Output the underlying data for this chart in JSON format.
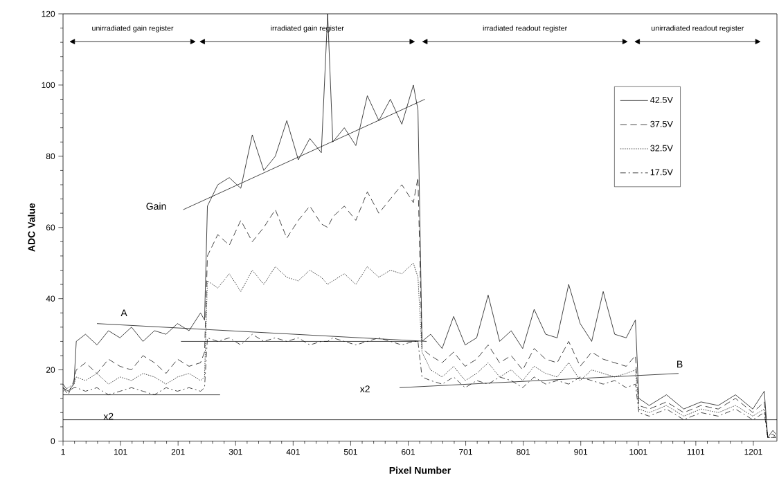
{
  "chart_data": {
    "type": "line",
    "xlabel": "Pixel Number",
    "ylabel": "ADC Value",
    "xlim": [
      1,
      1242
    ],
    "ylim": [
      0,
      120
    ],
    "xticks": [
      1,
      101,
      201,
      301,
      401,
      501,
      601,
      701,
      801,
      901,
      1001,
      1101,
      1201
    ],
    "yticks": [
      0,
      20,
      40,
      60,
      80,
      100,
      120
    ],
    "grid": false,
    "legend": "top right",
    "marker": "none",
    "x": [
      1,
      10,
      20,
      24,
      40,
      60,
      80,
      100,
      120,
      140,
      160,
      180,
      200,
      220,
      240,
      247,
      252,
      270,
      290,
      310,
      330,
      350,
      370,
      390,
      410,
      430,
      450,
      461,
      470,
      490,
      510,
      530,
      550,
      570,
      590,
      610,
      618,
      625,
      640,
      660,
      680,
      700,
      720,
      740,
      760,
      780,
      800,
      820,
      840,
      860,
      880,
      900,
      920,
      940,
      960,
      980,
      996,
      1002,
      1020,
      1050,
      1080,
      1110,
      1140,
      1170,
      1200,
      1220,
      1226,
      1235,
      1240
    ],
    "series": [
      {
        "name": "42.5V",
        "color": "#000000",
        "line_style": "solid",
        "values": [
          15,
          14,
          16,
          28,
          30,
          27,
          31,
          29,
          32,
          28,
          31,
          30,
          33,
          31,
          36,
          34,
          66,
          72,
          74,
          71,
          86,
          76,
          80,
          90,
          79,
          85,
          81,
          120,
          84,
          88,
          83,
          97,
          90,
          96,
          89,
          100,
          93,
          28,
          30,
          26,
          35,
          27,
          29,
          41,
          28,
          31,
          26,
          37,
          30,
          29,
          44,
          33,
          28,
          42,
          30,
          29,
          34,
          12,
          10,
          13,
          9,
          11,
          10,
          13,
          9,
          14,
          1,
          3,
          2
        ]
      },
      {
        "name": "37.5V",
        "color": "#000000",
        "line_style": "dashed",
        "values": [
          15,
          13,
          17,
          20,
          22,
          19,
          23,
          21,
          20,
          24,
          22,
          19,
          23,
          21,
          22,
          25,
          52,
          58,
          55,
          62,
          56,
          60,
          65,
          57,
          62,
          66,
          61,
          60,
          63,
          66,
          62,
          70,
          64,
          68,
          72,
          67,
          74,
          26,
          24,
          22,
          25,
          21,
          23,
          27,
          22,
          24,
          20,
          26,
          23,
          22,
          28,
          21,
          25,
          23,
          22,
          21,
          24,
          10,
          9,
          11,
          8,
          10,
          9,
          12,
          8,
          11,
          1,
          2,
          1
        ]
      },
      {
        "name": "32.5V",
        "color": "#000000",
        "line_style": "dotted",
        "values": [
          14,
          15,
          16,
          18,
          17,
          19,
          16,
          18,
          17,
          19,
          18,
          16,
          18,
          19,
          17,
          18,
          45,
          43,
          47,
          42,
          48,
          44,
          49,
          46,
          45,
          48,
          46,
          44,
          45,
          47,
          44,
          49,
          46,
          48,
          47,
          50,
          46,
          25,
          20,
          18,
          21,
          17,
          19,
          22,
          18,
          20,
          17,
          21,
          19,
          18,
          22,
          17,
          20,
          19,
          18,
          19,
          20,
          9,
          8,
          10,
          7,
          9,
          8,
          10,
          7,
          9,
          1,
          1,
          2
        ]
      },
      {
        "name": "17.5V",
        "color": "#000000",
        "line_style": "dashdot",
        "values": [
          16,
          14,
          15,
          15,
          14,
          15,
          13,
          14,
          15,
          14,
          13,
          15,
          14,
          15,
          14,
          15,
          29,
          28,
          29,
          27,
          30,
          28,
          29,
          28,
          29,
          27,
          28,
          28,
          29,
          28,
          27,
          28,
          29,
          28,
          27,
          28,
          28,
          18,
          17,
          16,
          18,
          15,
          17,
          16,
          18,
          17,
          15,
          18,
          16,
          17,
          16,
          18,
          17,
          16,
          17,
          15,
          16,
          8,
          7,
          9,
          6,
          8,
          7,
          9,
          6,
          8,
          1,
          1,
          1
        ]
      },
      {
        "type": "line",
        "color": "#000000",
        "line_style": "solid",
        "x": [
          210,
          630
        ],
        "values": [
          65,
          96
        ]
      },
      {
        "type": "line",
        "color": "#000000",
        "line_style": "solid",
        "x": [
          60,
          633
        ],
        "values": [
          33,
          28
        ]
      },
      {
        "type": "line",
        "color": "#000000",
        "line_style": "solid",
        "x": [
          586,
          1071
        ],
        "values": [
          15,
          19
        ]
      },
      {
        "type": "line",
        "color": "#000000",
        "line_style": "solid",
        "x": [
          1,
          274
        ],
        "values": [
          13,
          13
        ]
      },
      {
        "type": "line",
        "color": "#000000",
        "line_style": "solid",
        "x": [
          206,
          619
        ],
        "values": [
          28,
          28
        ]
      }
    ],
    "ref_lines": [
      {
        "axis": "y",
        "value": 6,
        "color": "#000000"
      }
    ],
    "annotations": [
      "unirradiated gain register",
      "irradiated gain register",
      "irradiated readout register",
      "unirradiated readout register",
      "Gain",
      "A",
      "B",
      "x2",
      "x2"
    ]
  }
}
